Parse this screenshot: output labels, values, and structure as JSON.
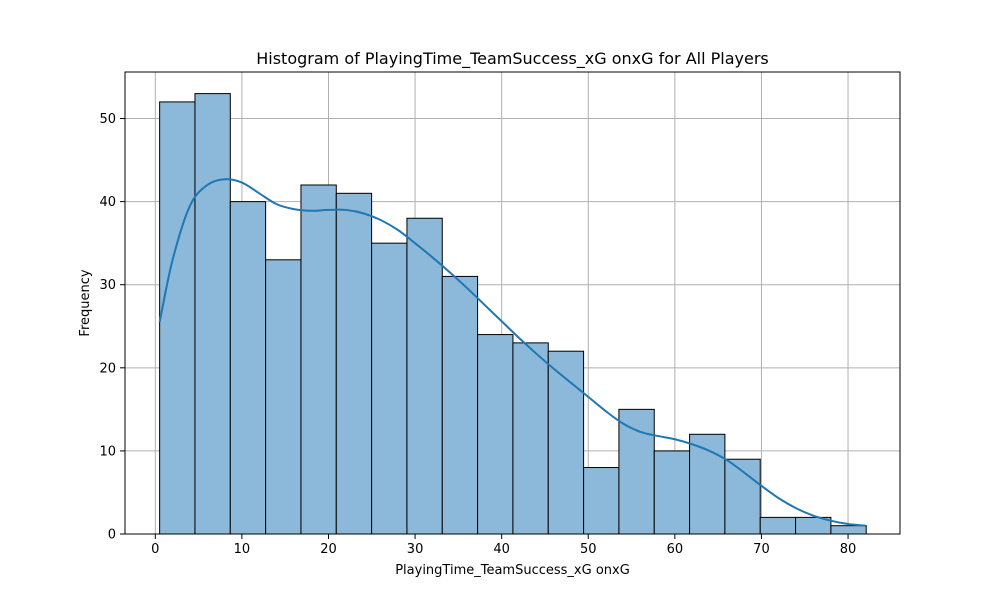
{
  "chart_data": {
    "type": "bar",
    "subtype": "histogram-with-kde",
    "title": "Histogram of PlayingTime_TeamSuccess_xG onxG for All Players",
    "xlabel": "PlayingTime_TeamSuccess_xG onxG",
    "ylabel": "Frequency",
    "xlim": [
      -3.5,
      86.0
    ],
    "ylim": [
      0,
      55.6
    ],
    "xticks": [
      0,
      10,
      20,
      30,
      40,
      50,
      60,
      70,
      80
    ],
    "yticks": [
      0,
      10,
      20,
      30,
      40,
      50
    ],
    "grid": true,
    "bins": {
      "start": 0.5,
      "width": 4.08,
      "values": [
        52,
        53,
        40,
        33,
        42,
        41,
        35,
        38,
        31,
        24,
        23,
        22,
        8,
        15,
        10,
        12,
        9,
        2,
        2,
        1
      ]
    },
    "kde": {
      "x": [
        0.5,
        2,
        4,
        6,
        8,
        10,
        12,
        14,
        16,
        18,
        20,
        22,
        24,
        26,
        28,
        30,
        32,
        34,
        36,
        38,
        40,
        42,
        44,
        46,
        48,
        50,
        52,
        54,
        56,
        58,
        60,
        62,
        64,
        66,
        68,
        70,
        72,
        74,
        76,
        78,
        80,
        82
      ],
      "y": [
        25.5,
        33,
        39.5,
        42,
        42.7,
        42.3,
        41,
        39.7,
        39.1,
        38.9,
        39,
        39,
        38.6,
        37.8,
        36.6,
        35,
        33.3,
        31.5,
        29.6,
        27.6,
        25.6,
        23.6,
        21.7,
        19.9,
        18.2,
        16.5,
        14.8,
        13.3,
        12.3,
        11.8,
        11.4,
        10.8,
        10,
        8.9,
        7.4,
        5.8,
        4.3,
        3.1,
        2.2,
        1.6,
        1.2,
        1.0
      ]
    },
    "colors": {
      "bar_fill": "#8cb8d9",
      "bar_edge": "#000000",
      "kde_line": "#1f77b4",
      "grid": "#b0b0b0"
    }
  }
}
